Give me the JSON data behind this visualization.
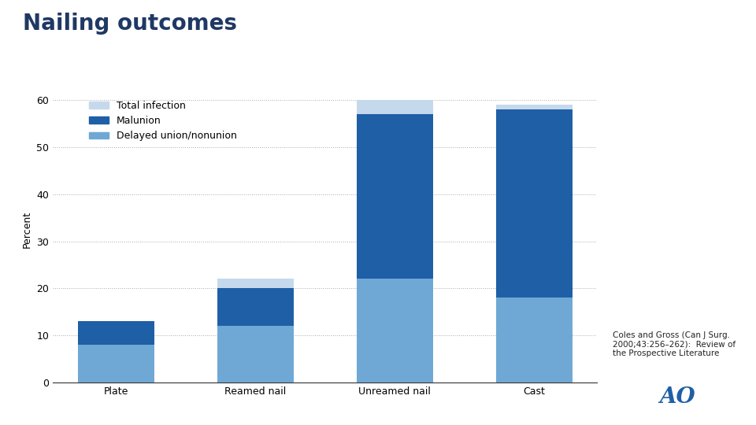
{
  "title": "Nailing outcomes",
  "ylabel": "Percent",
  "categories": [
    "Plate",
    "Reamed nail",
    "Unreamed nail",
    "Cast"
  ],
  "series": {
    "Total infection": {
      "values": [
        0,
        2,
        3,
        1
      ],
      "color": "#c5d9ed"
    },
    "Malunion": {
      "values": [
        5,
        8,
        35,
        40
      ],
      "color": "#1f5fa6"
    },
    "Delayed union/nonunion": {
      "values": [
        8,
        12,
        22,
        18
      ],
      "color": "#6fa8d5"
    }
  },
  "ylim": [
    0,
    65
  ],
  "yticks": [
    0,
    10,
    20,
    30,
    40,
    50,
    60
  ],
  "background_color": "#ffffff",
  "title_color": "#1f3864",
  "title_fontsize": 20,
  "axis_label_fontsize": 9,
  "tick_fontsize": 9,
  "legend_fontsize": 9,
  "bar_width": 0.55,
  "annotation_text": "Coles and Gross (Can J Surg.\n2000;43:256–262):  Review of\nthe Prospective Literature",
  "annotation_fontsize": 7.5,
  "ao_text": "AO",
  "ao_fontsize": 20,
  "ao_color": "#1f5fa6"
}
